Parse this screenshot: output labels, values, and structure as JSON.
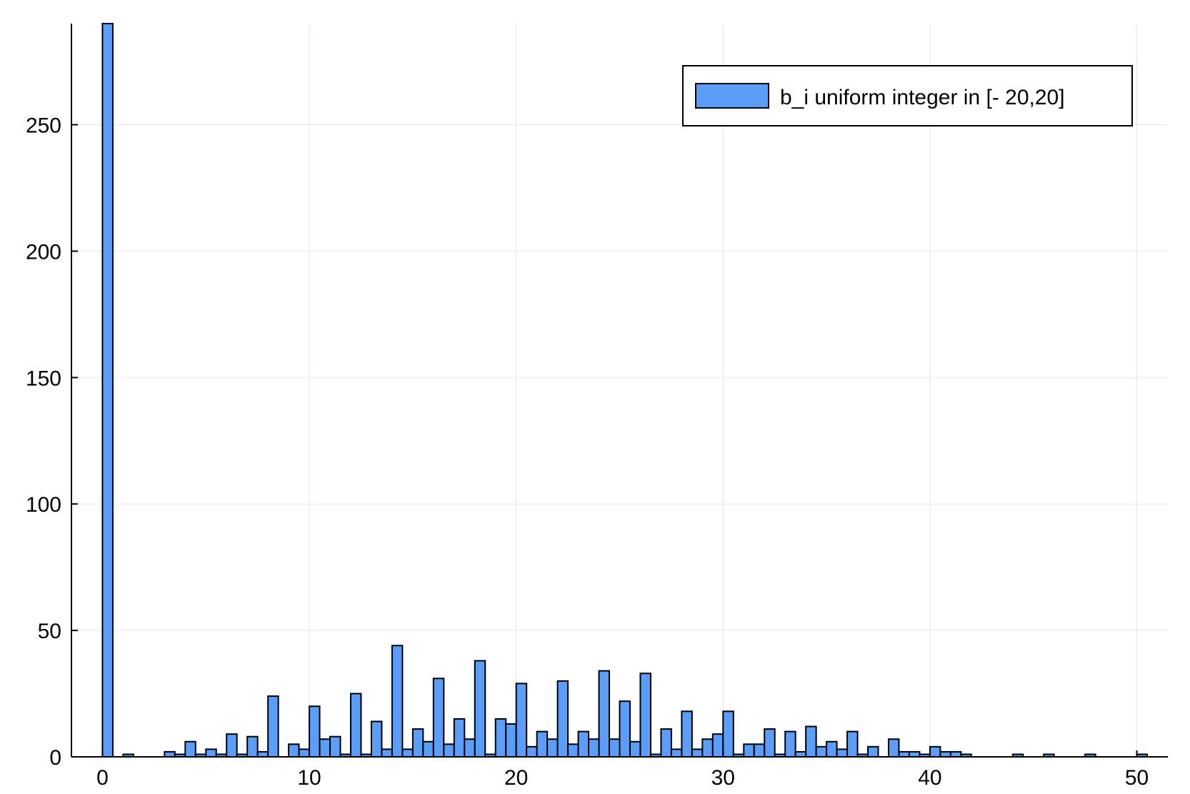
{
  "chart_data": {
    "type": "bar",
    "title": "",
    "xlabel": "",
    "ylabel": "",
    "xlim": [
      -1.5,
      51.5
    ],
    "ylim": [
      0,
      290
    ],
    "bin_width": 0.5,
    "xticks": [
      0,
      10,
      20,
      30,
      40,
      50
    ],
    "yticks": [
      0,
      50,
      100,
      150,
      200,
      250
    ],
    "grid": true,
    "legend_position": "top-right",
    "series": [
      {
        "name": "b_i uniform integer in [- 20,20]",
        "color": "#5a9ef9",
        "x": [
          0,
          1,
          3,
          3.5,
          4,
          4.5,
          5,
          5.5,
          6,
          6.5,
          7,
          7.5,
          8,
          9,
          9.5,
          10,
          10.5,
          11,
          11.5,
          12,
          12.5,
          13,
          13.5,
          14,
          14.5,
          15,
          15.5,
          16,
          16.5,
          17,
          17.5,
          18,
          18.5,
          19,
          19.5,
          20,
          20.5,
          21,
          21.5,
          22,
          22.5,
          23,
          23.5,
          24,
          24.5,
          25,
          25.5,
          26,
          26.5,
          27,
          27.5,
          28,
          28.5,
          29,
          29.5,
          30,
          30.5,
          31,
          31.5,
          32,
          32.5,
          33,
          33.5,
          34,
          34.5,
          35,
          35.5,
          36,
          36.5,
          37,
          38,
          38.5,
          39,
          39.5,
          40,
          40.5,
          41,
          41.5,
          44,
          45.5,
          47.5,
          50
        ],
        "values": [
          290,
          1,
          2,
          1,
          6,
          1,
          3,
          1,
          9,
          1,
          8,
          2,
          24,
          5,
          3,
          20,
          7,
          8,
          1,
          25,
          1,
          14,
          3,
          44,
          3,
          11,
          6,
          31,
          5,
          15,
          7,
          38,
          1,
          15,
          13,
          29,
          4,
          10,
          7,
          30,
          5,
          10,
          7,
          34,
          7,
          22,
          6,
          33,
          1,
          11,
          3,
          18,
          3,
          7,
          9,
          18,
          1,
          5,
          5,
          11,
          1,
          10,
          2,
          12,
          4,
          6,
          3,
          10,
          1,
          4,
          7,
          2,
          2,
          1,
          4,
          2,
          2,
          1,
          1,
          1,
          1,
          1
        ]
      }
    ]
  }
}
